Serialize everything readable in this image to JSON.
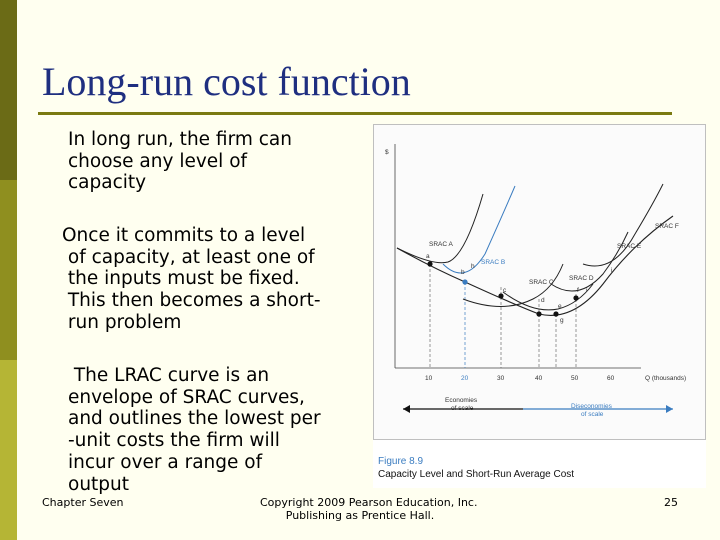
{
  "slide": {
    "title": "Long-run cost function",
    "paragraphs": [
      "In long run, the firm can\nchoose any level of\ncapacity",
      "Once it commits to a level\n of capacity, at least one of\n the inputs must be fixed.\n This then becomes a short-\n run problem",
      " The LRAC curve is an\nenvelope of SRAC curves,\nand outlines the lowest per\n-unit costs the firm will\nincur over a range of\noutput"
    ],
    "footer_left": "Chapter Seven",
    "footer_mid_1": "Copyright 2009 Pearson Education, Inc.",
    "footer_mid_2": "Publishing as Prentice Hall.",
    "page_number": "25"
  },
  "figure": {
    "y_axis_symbol": "$",
    "x_axis_label": "Q (thousands)",
    "x_ticks": [
      "10",
      "20",
      "30",
      "40",
      "50",
      "60"
    ],
    "curve_labels": {
      "srac_a": "SRAC A",
      "srac_b": "SRAC B",
      "srac_c": "SRAC C",
      "srac_d": "SRAC D",
      "srac_e": "SRAC E",
      "srac_f": "SRAC F"
    },
    "point_labels": [
      "a",
      "b",
      "c",
      "d",
      "e",
      "f",
      "g",
      "h",
      "i",
      "j"
    ],
    "economies_label": [
      "Economies",
      "of scale"
    ],
    "diseconomies_label": [
      "Diseconomies",
      "of scale"
    ],
    "caption_number": "Figure 8.9",
    "caption_text": "Capacity Level and Short-Run Average Cost",
    "colors": {
      "accent_blue": "#3a7cc0",
      "title": "#1f2f80",
      "rule": "#7a7a10"
    }
  }
}
